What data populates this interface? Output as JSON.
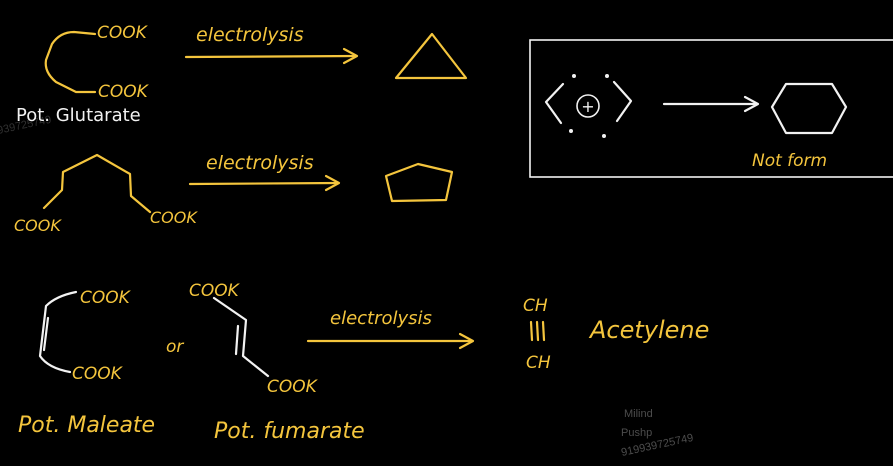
{
  "row1": {
    "group_top": "COOK",
    "group_bottom": "COOK",
    "name": "Pot. Glutarate",
    "arrow_label": "electrolysis"
  },
  "row2": {
    "group_left": "COOK",
    "group_right": "COOK",
    "arrow_label": "electrolysis"
  },
  "box": {
    "charge": "+",
    "note": "Not form"
  },
  "row3": {
    "maleate_top": "COOK",
    "maleate_bottom": "COOK",
    "connector": "or",
    "fumarate_top": "COOK",
    "fumarate_bottom": "COOK",
    "arrow_label": "electrolysis",
    "product_top": "CH",
    "product_bottom": "CH",
    "product_name": "Acetylene",
    "maleate_name": "Pot. Maleate",
    "fumarate_name": "Pot. fumarate"
  },
  "watermark": {
    "line1": "Milind",
    "line2": "Pushp",
    "line3": "919939725749",
    "edge": "939725749"
  },
  "colors": {
    "ink": "#f4c53d",
    "chalk": "#f2f2f2",
    "background": "#000000"
  }
}
